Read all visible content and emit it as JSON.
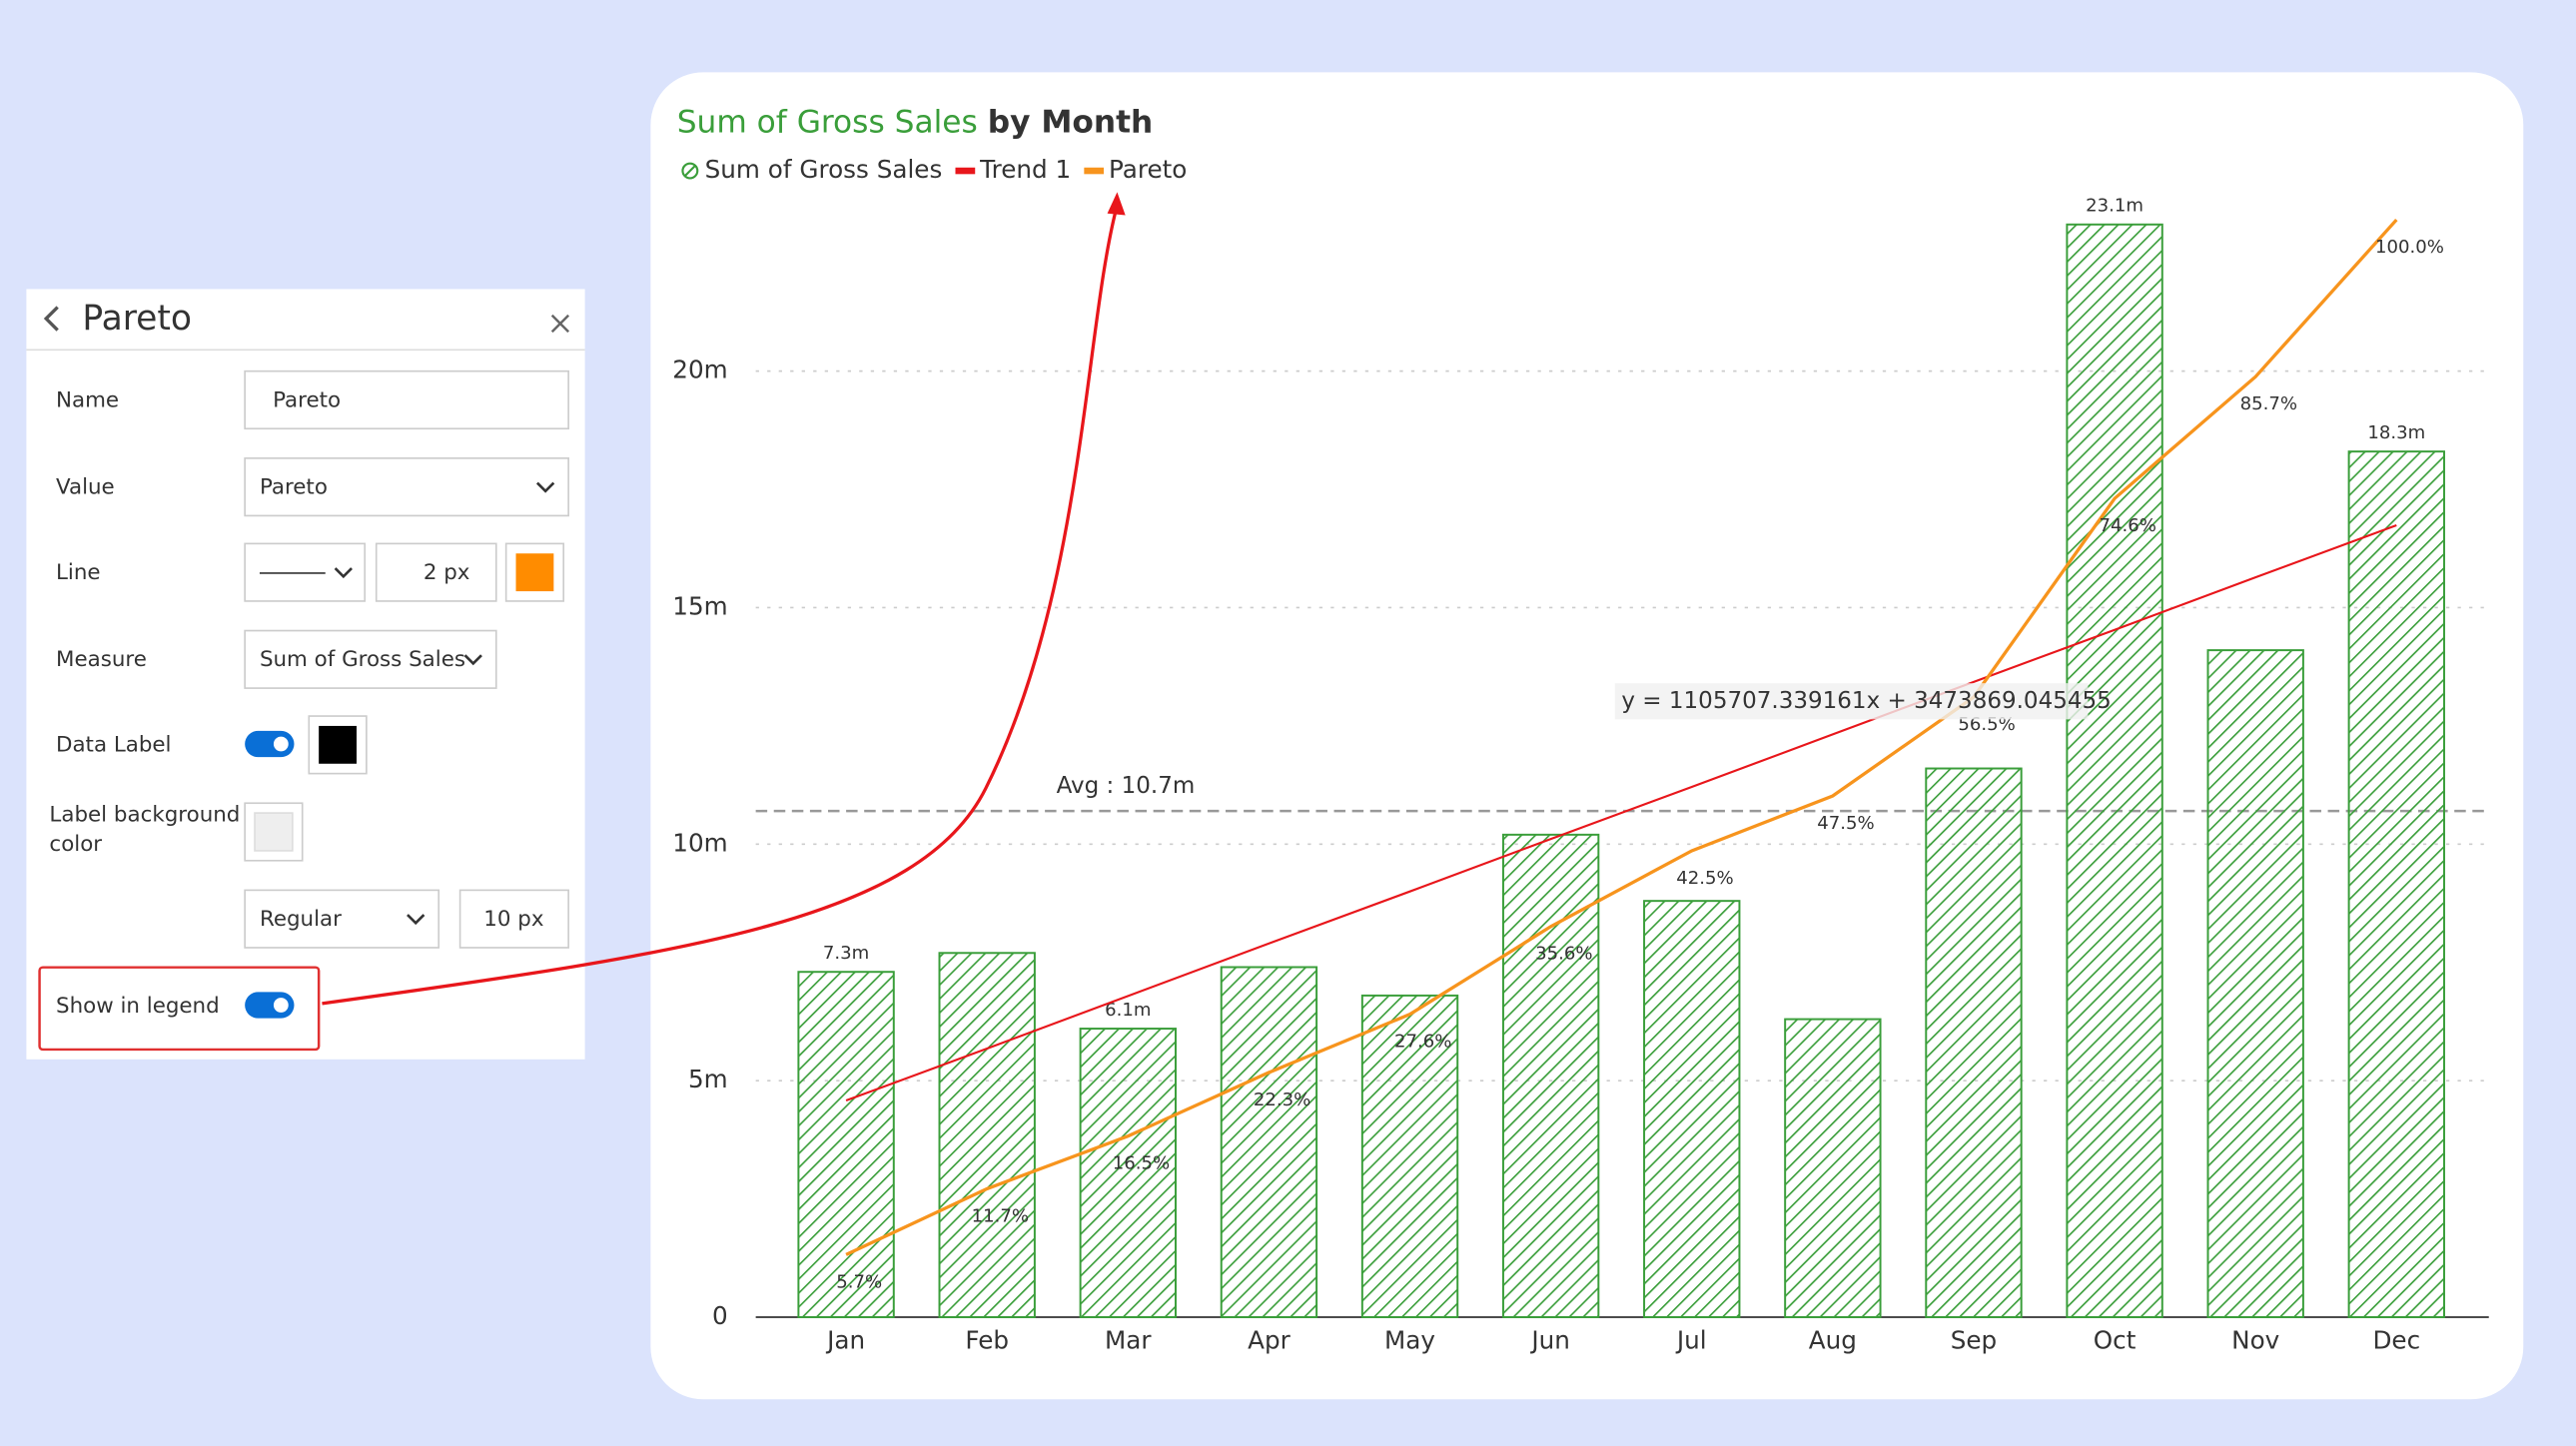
{
  "panel": {
    "title": "Pareto",
    "fields": [
      {
        "label": "Name",
        "value": "Pareto"
      },
      {
        "label": "Value",
        "value": "Pareto"
      },
      {
        "label": "Line",
        "value": "2 px"
      },
      {
        "label": "Measure",
        "value": "Sum of Gross Sales"
      },
      {
        "label": "Data Label"
      },
      {
        "label": "Label background color"
      },
      {
        "label": null,
        "value": "Regular",
        "extra": "10 px"
      },
      {
        "label": "Show in legend"
      }
    ]
  },
  "chart_data": {
    "type": "bar",
    "title_measure": "Sum of Gross Sales",
    "title_rest": "by Month",
    "categories": [
      "Jan",
      "Feb",
      "Mar",
      "Apr",
      "May",
      "Jun",
      "Jul",
      "Aug",
      "Sep",
      "Oct",
      "Nov",
      "Dec"
    ],
    "ylim": [
      0,
      23.2
    ],
    "yticks": [
      0,
      {
        "value": 5,
        "label": "5m"
      },
      {
        "value": 10,
        "label": "10m"
      },
      {
        "value": 15,
        "label": "15m"
      },
      {
        "value": 20,
        "label": "20m"
      }
    ],
    "y2lim": [
      0,
      100
    ],
    "grid": true,
    "series": [
      {
        "name": "Sum of Gross Sales",
        "color": "#3a9e3a",
        "type": "bar",
        "values": [
          7.3,
          7.7,
          6.1,
          7.4,
          6.8,
          10.2,
          8.8,
          6.3,
          11.6,
          23.1,
          14.1,
          18.3
        ],
        "value_labels": [
          "7.3m",
          null,
          "6.1m",
          null,
          null,
          null,
          null,
          null,
          null,
          "23.1m",
          null,
          "18.3m"
        ]
      },
      {
        "name": "Trend 1",
        "color": "#e8161b",
        "type": "line",
        "values": [
          4.58,
          5.68,
          6.79,
          7.9,
          9.0,
          10.11,
          11.21,
          12.32,
          13.43,
          14.53,
          15.64,
          16.74
        ]
      },
      {
        "name": "Pareto",
        "color": "#f7941d",
        "type": "line",
        "axis": "y2",
        "values": [
          5.7,
          11.7,
          16.5,
          22.3,
          27.6,
          35.6,
          42.5,
          47.5,
          56.5,
          74.6,
          85.7,
          100.0
        ],
        "value_labels": [
          "5.7%",
          "11.7%",
          "16.5%",
          "22.3%",
          "27.6%",
          "35.6%",
          "42.5%",
          "47.5%",
          "56.5%",
          "74.6%",
          "85.7%",
          "100.0%"
        ]
      }
    ],
    "average": {
      "value": 10.7,
      "label": "Avg : 10.7m"
    },
    "trend_equation": "y = 1105707.339161x + 3473869.045455"
  }
}
